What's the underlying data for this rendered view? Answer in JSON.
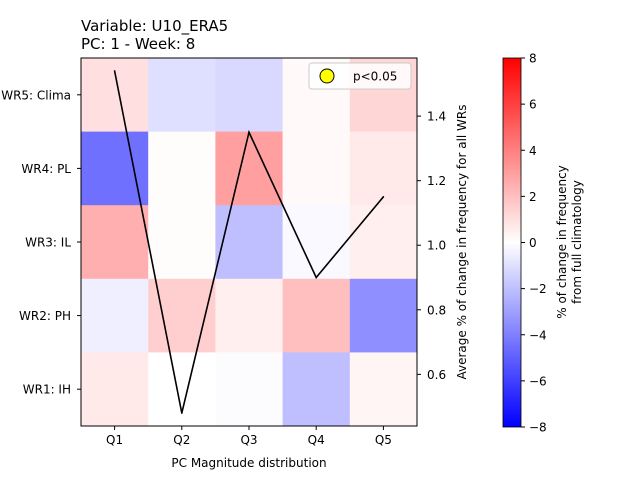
{
  "chart_data": [
    {
      "type": "heatmap",
      "title_lines": [
        "Variable: U10_ERA5",
        "PC: 1 - Week: 8"
      ],
      "xlabel": "PC Magnitude distribution",
      "categories": [
        "Q1",
        "Q2",
        "Q3",
        "Q4",
        "Q5"
      ],
      "rows": [
        "WR5: Clima",
        "WR4: PL",
        "WR3: IL",
        "WR2: PH",
        "WR1: IH"
      ],
      "values": [
        [
          1.0,
          -1.0,
          -1.2,
          0.2,
          1.3
        ],
        [
          -4.5,
          0.1,
          3.0,
          0.2,
          0.7
        ],
        [
          2.5,
          0.1,
          -2.0,
          -0.2,
          0.5
        ],
        [
          -0.5,
          1.5,
          0.5,
          2.0,
          -3.5
        ],
        [
          0.7,
          0.0,
          -0.1,
          -2.0,
          0.3
        ]
      ],
      "colormap": "bwr",
      "vmin": -8,
      "vmax": 8
    },
    {
      "type": "line",
      "categories": [
        "Q1",
        "Q2",
        "Q3",
        "Q4",
        "Q5"
      ],
      "values": [
        1.54,
        0.48,
        1.35,
        0.9,
        1.15
      ],
      "ylabel": "Average % of change in frequency for all WRs",
      "ylim": [
        0.44,
        1.58
      ],
      "yticks": [
        0.6,
        0.8,
        1.0,
        1.2,
        1.4
      ],
      "color": "#000000"
    }
  ],
  "legend": {
    "label": "p<0.05",
    "marker_color": "#ffff00",
    "position": "top-right"
  },
  "colorbar": {
    "label_lines": [
      "% of change in frequency",
      "from full climatology"
    ],
    "ticks": [
      8,
      6,
      4,
      2,
      0,
      -2,
      -4,
      -6,
      -8
    ],
    "tick_labels": [
      "8",
      "6",
      "4",
      "2",
      "0",
      "−2",
      "−4",
      "−6",
      "−8"
    ],
    "colors": {
      "low": "#0000ff",
      "mid": "#ffffff",
      "high": "#ff0000"
    }
  }
}
